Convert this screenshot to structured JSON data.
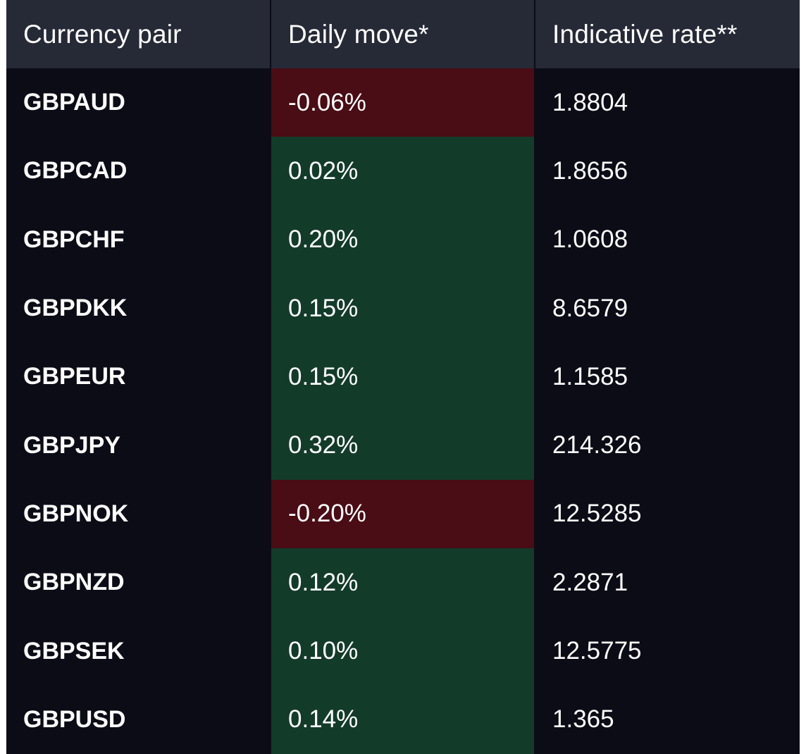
{
  "headers": {
    "pair": "Currency pair",
    "move": "Daily move*",
    "rate": "Indicative rate**"
  },
  "colors": {
    "header_bg": "#262936",
    "table_bg": "#0b0c16",
    "positive_bg": "#133b2a",
    "negative_bg": "#4a0c15",
    "text": "#ffffff"
  },
  "rows": [
    {
      "pair": "GBPAUD",
      "move": "-0.06%",
      "direction": "down",
      "rate": "1.8804"
    },
    {
      "pair": "GBPCAD",
      "move": "0.02%",
      "direction": "up",
      "rate": "1.8656"
    },
    {
      "pair": "GBPCHF",
      "move": "0.20%",
      "direction": "up",
      "rate": "1.0608"
    },
    {
      "pair": "GBPDKK",
      "move": "0.15%",
      "direction": "up",
      "rate": "8.6579"
    },
    {
      "pair": "GBPEUR",
      "move": "0.15%",
      "direction": "up",
      "rate": "1.1585"
    },
    {
      "pair": "GBPJPY",
      "move": "0.32%",
      "direction": "up",
      "rate": "214.326"
    },
    {
      "pair": "GBPNOK",
      "move": "-0.20%",
      "direction": "down",
      "rate": "12.5285"
    },
    {
      "pair": "GBPNZD",
      "move": "0.12%",
      "direction": "up",
      "rate": "2.2871"
    },
    {
      "pair": "GBPSEK",
      "move": "0.10%",
      "direction": "up",
      "rate": "12.5775"
    },
    {
      "pair": "GBPUSD",
      "move": "0.14%",
      "direction": "up",
      "rate": "1.365"
    }
  ]
}
